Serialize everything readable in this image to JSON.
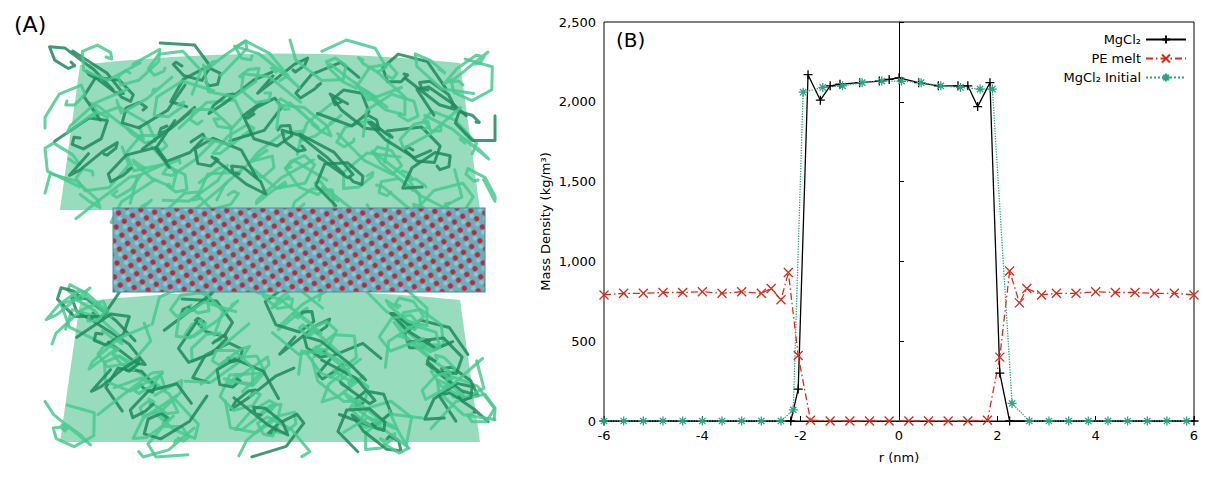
{
  "panel_a": {
    "label": "(A)"
  },
  "chart_data": {
    "type": "line",
    "panel_label": "(B)",
    "xlabel": "r (nm)",
    "ylabel": "Mass Density (kg/m³)",
    "xlim": [
      -6,
      6
    ],
    "xticks": [
      -6,
      -4,
      -2,
      0,
      2,
      4,
      6
    ],
    "ylim": [
      0,
      2500
    ],
    "yticks": [
      0,
      500,
      1000,
      1500,
      2000,
      2500
    ],
    "grid": false,
    "legend": "top-right",
    "series": [
      {
        "name": "MgCl₂",
        "color": "#000000",
        "marker": "plus",
        "line_style": "solid",
        "x": [
          -6,
          -2.2,
          -2.05,
          -1.85,
          -1.6,
          -1.4,
          -1.2,
          -0.8,
          -0.4,
          -0.2,
          0,
          0.4,
          0.8,
          1.2,
          1.4,
          1.6,
          1.85,
          2.05,
          2.25,
          6
        ],
        "values": [
          0,
          0,
          200,
          2170,
          2010,
          2100,
          2110,
          2120,
          2130,
          2140,
          2150,
          2120,
          2100,
          2100,
          2100,
          1970,
          2120,
          300,
          0,
          0
        ]
      },
      {
        "name": "PE melt",
        "color": "#d62c1a",
        "marker": "x",
        "line_style": "dashdot",
        "x": [
          -6,
          -5.6,
          -5.2,
          -4.8,
          -4.4,
          -4.0,
          -3.6,
          -3.2,
          -2.8,
          -2.6,
          -2.4,
          -2.25,
          -2.05,
          -1.8,
          -1.4,
          -1.0,
          -0.6,
          -0.2,
          0.2,
          0.6,
          1.0,
          1.4,
          1.8,
          2.05,
          2.25,
          2.45,
          2.6,
          2.9,
          3.2,
          3.6,
          4.0,
          4.4,
          4.8,
          5.2,
          5.6,
          6
        ],
        "values": [
          790,
          800,
          800,
          805,
          805,
          810,
          800,
          810,
          800,
          830,
          760,
          930,
          410,
          5,
          0,
          0,
          0,
          0,
          0,
          0,
          0,
          0,
          5,
          400,
          940,
          740,
          830,
          790,
          800,
          800,
          810,
          805,
          805,
          800,
          800,
          790
        ]
      },
      {
        "name": "MgCl₂ Initial",
        "color": "#2aa386",
        "marker": "asterisk",
        "line_style": "dotted",
        "x": [
          -6,
          -5.6,
          -5.2,
          -4.8,
          -4.4,
          -4.0,
          -3.6,
          -3.2,
          -2.8,
          -2.4,
          -2.15,
          -1.95,
          -1.55,
          -1.15,
          -0.75,
          -0.35,
          0.05,
          0.45,
          0.85,
          1.25,
          1.65,
          1.9,
          2.3,
          2.65,
          3.05,
          3.45,
          3.85,
          4.25,
          4.65,
          5.05,
          5.45,
          5.85
        ],
        "values": [
          0,
          0,
          0,
          0,
          0,
          0,
          0,
          0,
          0,
          0,
          70,
          2060,
          2090,
          2100,
          2120,
          2130,
          2130,
          2120,
          2100,
          2090,
          2080,
          2080,
          110,
          0,
          0,
          0,
          0,
          0,
          0,
          0,
          0,
          0
        ]
      }
    ]
  }
}
